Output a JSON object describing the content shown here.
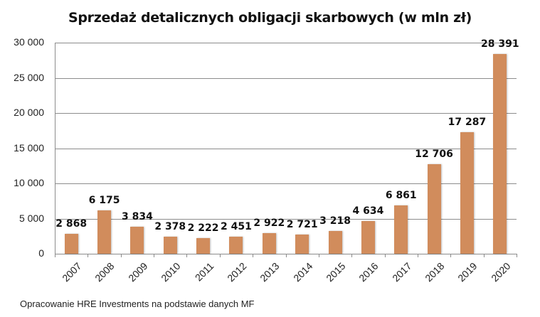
{
  "title": "Sprzedaż detalicznych obligacji skarbowych (w mln zł)",
  "source": "Opracowanie HRE Investments na podstawie danych MF",
  "colors": {
    "bar": "#d18c5c",
    "grid": "#8c8c8c"
  },
  "chart_data": {
    "type": "bar",
    "title": "Sprzedaż detalicznych obligacji skarbowych (w mln zł)",
    "xlabel": "",
    "ylabel": "",
    "categories": [
      "2007",
      "2008",
      "2009",
      "2010",
      "2011",
      "2012",
      "2013",
      "2014",
      "2015",
      "2016",
      "2017",
      "2018",
      "2019",
      "2020"
    ],
    "values": [
      2868,
      6175,
      3834,
      2378,
      2222,
      2451,
      2922,
      2721,
      3218,
      4634,
      6861,
      12706,
      17287,
      28391
    ],
    "value_labels": [
      "2 868",
      "6 175",
      "3 834",
      "2 378",
      "2 222",
      "2 451",
      "2 922",
      "2 721",
      "3 218",
      "4 634",
      "6 861",
      "12 706",
      "17 287",
      "28 391"
    ],
    "yticks": [
      "0",
      "5 000",
      "10 000",
      "15 000",
      "20 000",
      "25 000",
      "30 000"
    ],
    "ylim": [
      0,
      30000
    ],
    "grid": true,
    "legend": null
  }
}
